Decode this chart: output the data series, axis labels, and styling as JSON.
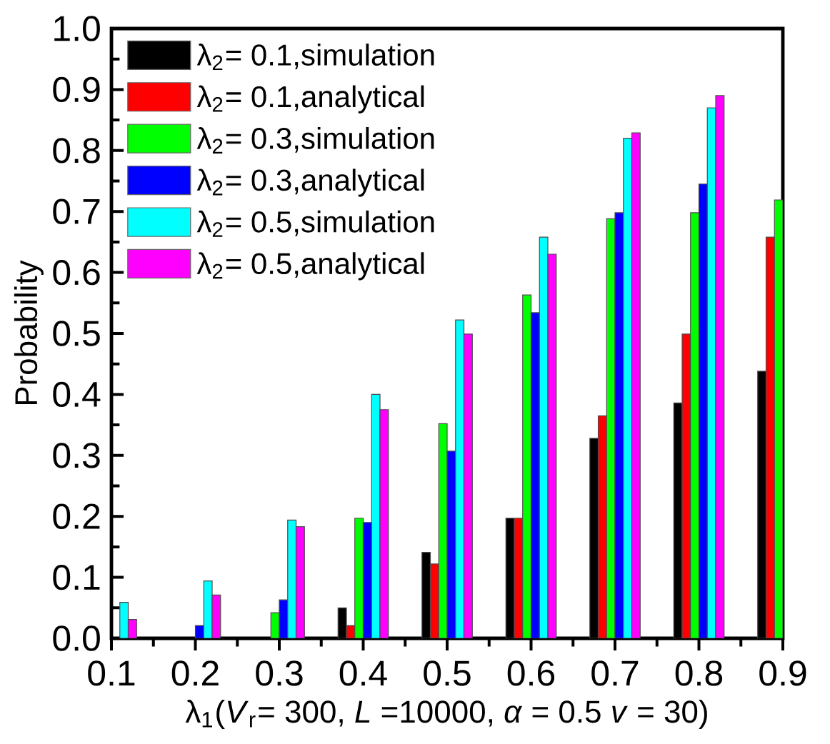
{
  "chart_data": {
    "type": "bar",
    "xlabel": "λ$_{1}$(*V*$_{r}$= 300, *L* =10000, *α* = 0.5 *v* = 30)",
    "ylabel": "Probability",
    "x": [
      0.1,
      0.2,
      0.3,
      0.4,
      0.5,
      0.6,
      0.7,
      0.8,
      0.9
    ],
    "xlim": [
      0.1,
      0.9
    ],
    "xticks": [
      0.1,
      0.2,
      0.3,
      0.4,
      0.5,
      0.6,
      0.7,
      0.8,
      0.9
    ],
    "ylim": [
      0,
      1
    ],
    "yticks": [
      {
        "value": 0,
        "label": "0.0"
      },
      0.1,
      0.2,
      0.3,
      0.4,
      0.5,
      0.6,
      0.7,
      0.8,
      0.9,
      {
        "value": 1,
        "label": "1.0"
      }
    ],
    "legend": "top left",
    "series": [
      {
        "name": "λ$_{2}$= 0.1,simulation",
        "color": "#000000",
        "values": [
          null,
          null,
          null,
          0.05,
          0.141,
          0.197,
          0.328,
          0.386,
          0.438
        ]
      },
      {
        "name": "λ$_{2}$= 0.1,analytical",
        "color": "#ff0000",
        "values": [
          null,
          null,
          null,
          0.021,
          0.122,
          0.197,
          0.365,
          0.499,
          0.658
        ]
      },
      {
        "name": "λ$_{2}$= 0.3,simulation",
        "color": "#00ff00",
        "values": [
          null,
          null,
          0.042,
          0.197,
          0.352,
          0.563,
          0.688,
          0.698,
          0.719
        ]
      },
      {
        "name": "λ$_{2}$= 0.3,analytical",
        "color": "#0000ff",
        "values": [
          null,
          0.021,
          0.063,
          0.19,
          0.307,
          0.534,
          0.698,
          0.745,
          null
        ]
      },
      {
        "name": "λ$_{2}$= 0.5,simulation",
        "color": "#00ffff",
        "values": [
          0.059,
          0.094,
          0.194,
          0.4,
          0.522,
          0.658,
          0.82,
          0.87,
          null
        ]
      },
      {
        "name": "λ$_{2}$= 0.5,analytical",
        "color": "#ff00ff",
        "values": [
          0.031,
          0.071,
          0.183,
          0.375,
          0.499,
          0.63,
          0.829,
          0.89,
          null
        ]
      }
    ]
  }
}
